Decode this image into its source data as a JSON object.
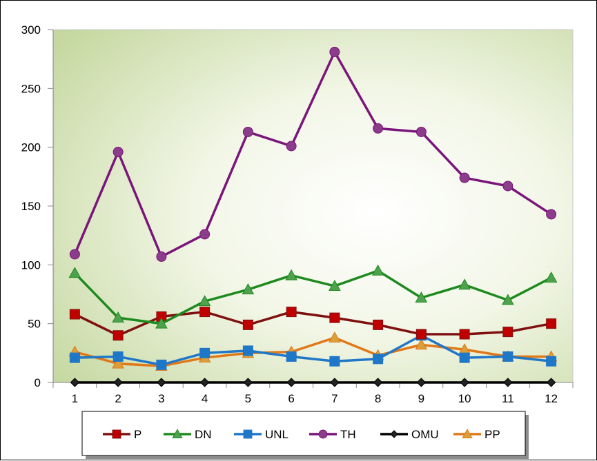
{
  "chart_data": {
    "type": "line",
    "title": "",
    "xlabel": "",
    "ylabel": "",
    "categories": [
      "1",
      "2",
      "3",
      "4",
      "5",
      "6",
      "7",
      "8",
      "9",
      "10",
      "11",
      "12"
    ],
    "ylim": [
      0,
      300
    ],
    "yticks": [
      "0",
      "50",
      "100",
      "150",
      "200",
      "250",
      "300"
    ],
    "grid": false,
    "legend_position": "bottom",
    "series": [
      {
        "name": "P",
        "color": "#C00000",
        "line_color": "#7F1010",
        "marker": "square",
        "values": [
          58,
          40,
          56,
          60,
          49,
          60,
          55,
          49,
          41,
          41,
          43,
          50
        ]
      },
      {
        "name": "DN",
        "color": "#4EA24E",
        "line_color": "#1E8A1E",
        "marker": "triangle",
        "values": [
          93,
          55,
          50,
          69,
          79,
          91,
          82,
          95,
          72,
          83,
          70,
          89
        ]
      },
      {
        "name": "UNL",
        "color": "#1F77C8",
        "line_color": "#1F77C8",
        "marker": "square",
        "values": [
          21,
          22,
          15,
          25,
          27,
          22,
          18,
          20,
          40,
          21,
          22,
          18
        ]
      },
      {
        "name": "TH",
        "color": "#8B3C8B",
        "line_color": "#7A157A",
        "marker": "circle",
        "values": [
          109,
          196,
          107,
          126,
          213,
          201,
          281,
          216,
          213,
          174,
          167,
          143
        ]
      },
      {
        "name": "OMU",
        "color": "#222222",
        "line_color": "#000000",
        "marker": "diamond",
        "values": [
          0,
          0,
          0,
          0,
          0,
          0,
          0,
          0,
          0,
          0,
          0,
          0
        ]
      },
      {
        "name": "PP",
        "color": "#D9A03A",
        "line_color": "#E07818",
        "marker": "triangle",
        "values": [
          26,
          16,
          14,
          21,
          25,
          26,
          38,
          23,
          32,
          28,
          22,
          22
        ]
      }
    ]
  }
}
